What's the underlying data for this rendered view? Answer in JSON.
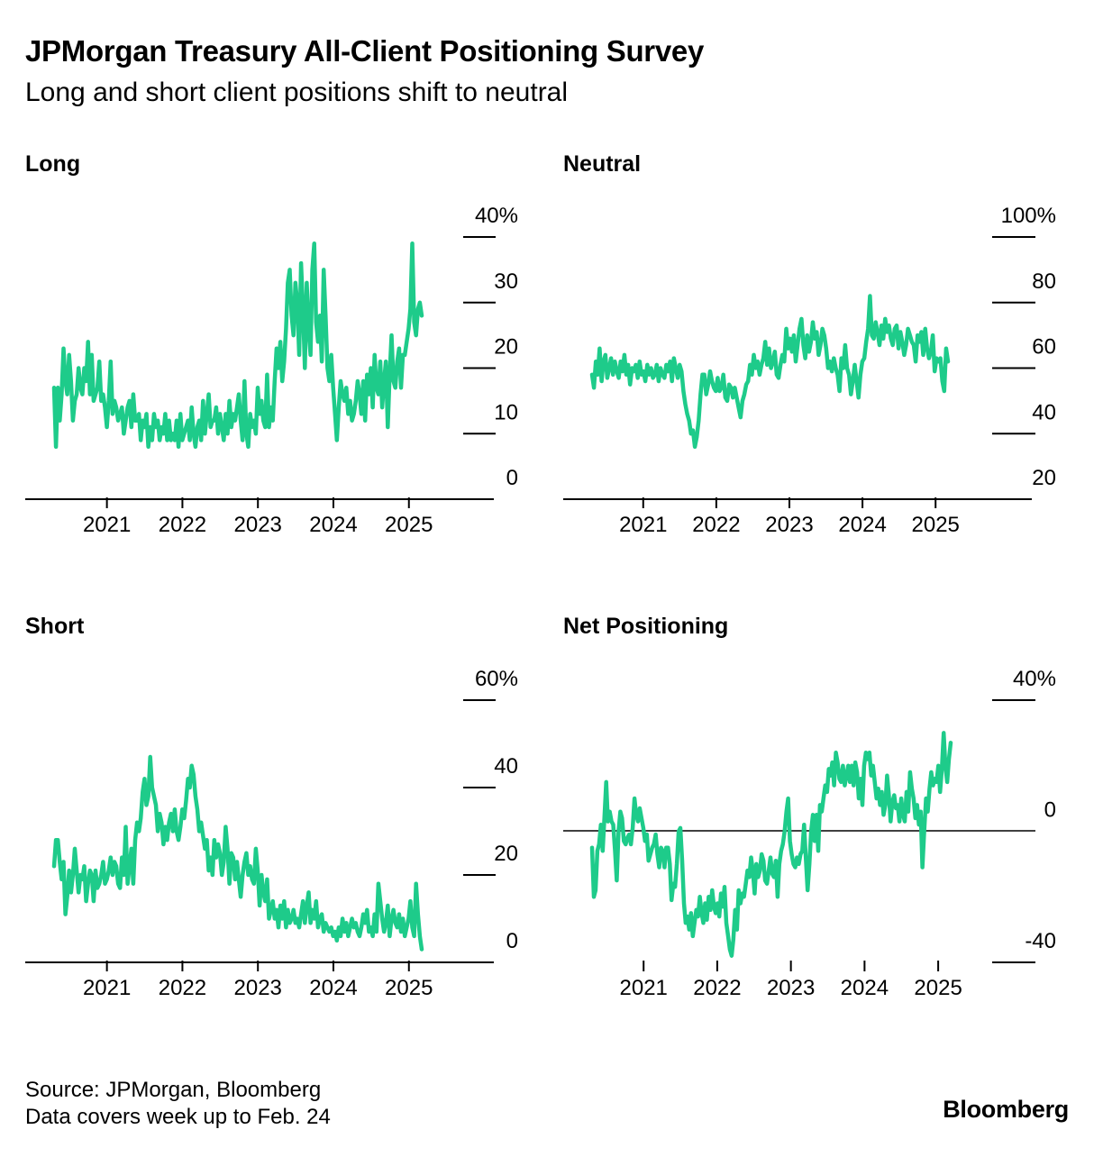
{
  "header": {
    "title": "JPMorgan Treasury All-Client Positioning Survey",
    "subtitle": "Long and short client positions shift to neutral"
  },
  "footer": {
    "source": "Source: JPMorgan, Bloomberg",
    "note": "Data covers week up to Feb. 24",
    "brand": "Bloomberg"
  },
  "colors": {
    "line": "#1ecb8a",
    "axis": "#000000"
  },
  "chart_data": [
    {
      "type": "line",
      "title": "Long",
      "x_ticks": [
        "2021",
        "2022",
        "2023",
        "2024",
        "2025"
      ],
      "y_ticks": [
        "40%",
        "30",
        "20",
        "10",
        "0"
      ],
      "ylim": [
        0,
        40
      ],
      "x_start": 2020.3,
      "x_end": 2025.17,
      "values": [
        17,
        8,
        17,
        12,
        16,
        23,
        18,
        16,
        22,
        18,
        12,
        15,
        16,
        20,
        17,
        16,
        20,
        18,
        24,
        16,
        22,
        15,
        16,
        17,
        21,
        15,
        16,
        14,
        11,
        15,
        21,
        13,
        15,
        14,
        12,
        13,
        14,
        10,
        12,
        14,
        15,
        11,
        16,
        12,
        12,
        13,
        9,
        12,
        11,
        13,
        8,
        11,
        9,
        13,
        11,
        12,
        9,
        11,
        10,
        13,
        9,
        12,
        9,
        10,
        9,
        12,
        8,
        13,
        9,
        10,
        11,
        12,
        9,
        14,
        10,
        8,
        11,
        12,
        9,
        15,
        10,
        13,
        16,
        11,
        12,
        12,
        14,
        10,
        13,
        11,
        9,
        13,
        10,
        15,
        11,
        13,
        12,
        14,
        16,
        12,
        9,
        18,
        10,
        8,
        13,
        11,
        12,
        10,
        17,
        13,
        15,
        12,
        11,
        19,
        11,
        14,
        12,
        18,
        23,
        20,
        24,
        18,
        21,
        26,
        33,
        35,
        28,
        25,
        33,
        30,
        22,
        36,
        29,
        20,
        33,
        26,
        22,
        35,
        39,
        27,
        24,
        28,
        21,
        35,
        28,
        20,
        18,
        22,
        17,
        13,
        9,
        14,
        18,
        16,
        15,
        17,
        13,
        15,
        12,
        13,
        15,
        18,
        16,
        13,
        18,
        12,
        19,
        16,
        20,
        14,
        22,
        17,
        16,
        21,
        14,
        18,
        21,
        11,
        19,
        25,
        18,
        17,
        21,
        23,
        17,
        22,
        22,
        24,
        26,
        29,
        39,
        27,
        25,
        29,
        30,
        28
      ]
    },
    {
      "type": "line",
      "title": "Neutral",
      "x_ticks": [
        "2021",
        "2022",
        "2023",
        "2024",
        "2025"
      ],
      "y_ticks": [
        "100%",
        "80",
        "60",
        "40",
        "20"
      ],
      "ylim": [
        20,
        100
      ],
      "x_start": 2020.3,
      "x_end": 2025.17,
      "values": [
        58,
        54,
        62,
        58,
        66,
        56,
        62,
        64,
        57,
        60,
        63,
        58,
        62,
        59,
        57,
        62,
        59,
        64,
        58,
        61,
        55,
        60,
        59,
        61,
        57,
        62,
        58,
        59,
        56,
        61,
        58,
        60,
        57,
        58,
        61,
        56,
        60,
        58,
        57,
        61,
        59,
        62,
        56,
        63,
        60,
        57,
        61,
        59,
        53,
        49,
        46,
        44,
        40,
        41,
        36,
        39,
        44,
        52,
        58,
        58,
        52,
        55,
        59,
        56,
        54,
        53,
        57,
        53,
        54,
        58,
        51,
        50,
        55,
        54,
        51,
        54,
        51,
        48,
        45,
        50,
        52,
        55,
        56,
        61,
        58,
        64,
        60,
        62,
        58,
        61,
        63,
        68,
        61,
        66,
        60,
        62,
        65,
        58,
        57,
        61,
        64,
        62,
        72,
        66,
        69,
        65,
        70,
        62,
        67,
        72,
        75,
        67,
        63,
        70,
        65,
        68,
        74,
        69,
        71,
        64,
        67,
        72,
        70,
        66,
        60,
        62,
        59,
        63,
        60,
        58,
        53,
        63,
        60,
        67,
        60,
        58,
        52,
        56,
        61,
        56,
        51,
        58,
        62,
        63,
        68,
        72,
        82,
        70,
        69,
        74,
        71,
        67,
        73,
        69,
        75,
        71,
        73,
        69,
        67,
        72,
        73,
        66,
        71,
        68,
        64,
        67,
        72,
        70,
        68,
        67,
        62,
        70,
        68,
        71,
        64,
        72,
        66,
        63,
        65,
        70,
        59,
        63,
        62,
        63,
        56,
        53,
        66,
        62
      ]
    },
    {
      "type": "line",
      "title": "Short",
      "x_ticks": [
        "2021",
        "2022",
        "2023",
        "2024",
        "2025"
      ],
      "y_ticks": [
        "60%",
        "40",
        "20",
        "0"
      ],
      "ylim": [
        0,
        60
      ],
      "x_start": 2020.3,
      "x_end": 2025.17,
      "values": [
        22,
        28,
        28,
        23,
        19,
        23,
        11,
        15,
        21,
        16,
        20,
        26,
        21,
        16,
        20,
        19,
        22,
        14,
        18,
        21,
        20,
        14,
        21,
        17,
        18,
        20,
        23,
        18,
        19,
        21,
        24,
        20,
        23,
        22,
        18,
        17,
        24,
        20,
        31,
        18,
        22,
        26,
        18,
        28,
        32,
        30,
        33,
        39,
        42,
        36,
        38,
        47,
        40,
        38,
        36,
        30,
        34,
        32,
        27,
        31,
        28,
        32,
        34,
        30,
        35,
        30,
        28,
        31,
        35,
        33,
        37,
        42,
        40,
        45,
        43,
        38,
        35,
        30,
        32,
        29,
        26,
        28,
        21,
        24,
        20,
        28,
        24,
        27,
        25,
        20,
        23,
        31,
        26,
        18,
        25,
        24,
        19,
        23,
        19,
        15,
        20,
        23,
        25,
        20,
        22,
        19,
        18,
        26,
        21,
        13,
        20,
        16,
        14,
        19,
        10,
        12,
        14,
        10,
        12,
        8,
        13,
        10,
        14,
        8,
        12,
        9,
        10,
        12,
        9,
        10,
        8,
        11,
        14,
        9,
        13,
        16,
        9,
        12,
        10,
        14,
        8,
        10,
        11,
        7,
        9,
        8,
        7,
        8,
        6,
        7,
        5,
        8,
        6,
        10,
        7,
        9,
        6,
        8,
        10,
        8,
        9,
        7,
        6,
        8,
        11,
        9,
        12,
        7,
        8,
        6,
        11,
        7,
        18,
        14,
        10,
        7,
        9,
        13,
        6,
        10,
        12,
        9,
        8,
        11,
        7,
        10,
        6,
        8,
        10,
        14,
        8,
        6,
        18,
        11,
        6,
        3
      ]
    },
    {
      "type": "line",
      "title": "Net Positioning",
      "x_ticks": [
        "2021",
        "2022",
        "2023",
        "2024",
        "2025"
      ],
      "y_ticks": [
        "40%",
        "0",
        "-40"
      ],
      "ylim": [
        -48,
        40
      ],
      "x_start": 2020.3,
      "x_end": 2025.17,
      "values": [
        -5,
        -20,
        -18,
        -6,
        -4,
        2,
        -6,
        4,
        15,
        3,
        6,
        3,
        2,
        -6,
        -15,
        0,
        6,
        4,
        -3,
        -4,
        -2,
        -1,
        -4,
        1,
        10,
        5,
        3,
        7,
        4,
        1,
        -3,
        -1,
        -9,
        -7,
        -5,
        -4,
        -1,
        -7,
        -11,
        -5,
        -6,
        -11,
        -5,
        -5,
        -10,
        -21,
        -16,
        -17,
        -10,
        0,
        1,
        -9,
        -22,
        -28,
        -26,
        -30,
        -25,
        -32,
        -28,
        -24,
        -26,
        -20,
        -25,
        -28,
        -22,
        -27,
        -20,
        -24,
        -18,
        -23,
        -25,
        -22,
        -26,
        -19,
        -23,
        -17,
        -28,
        -32,
        -36,
        -38,
        -33,
        -24,
        -30,
        -18,
        -22,
        -19,
        -20,
        -16,
        -12,
        -14,
        -8,
        -12,
        -19,
        -10,
        -14,
        -12,
        -7,
        -9,
        -15,
        -16,
        -12,
        -8,
        -13,
        -14,
        -9,
        -20,
        -10,
        -6,
        -4,
        0,
        6,
        10,
        -3,
        -7,
        -10,
        -11,
        -8,
        -10,
        -7,
        -6,
        2,
        -8,
        -18,
        -10,
        0,
        5,
        -3,
        5,
        -6,
        8,
        6,
        10,
        14,
        12,
        19,
        17,
        21,
        14,
        24,
        21,
        16,
        15,
        20,
        14,
        17,
        20,
        15,
        20,
        14,
        21,
        18,
        10,
        16,
        8,
        20,
        24,
        22,
        24,
        17,
        20,
        15,
        10,
        13,
        8,
        12,
        5,
        8,
        17,
        11,
        3,
        9,
        11,
        7,
        8,
        3,
        10,
        5,
        3,
        12,
        6,
        18,
        13,
        10,
        4,
        8,
        2,
        6,
        -11,
        0,
        10,
        6,
        13,
        18,
        14,
        16,
        15,
        20,
        12,
        19,
        30,
        20,
        15,
        22,
        27
      ]
    }
  ]
}
